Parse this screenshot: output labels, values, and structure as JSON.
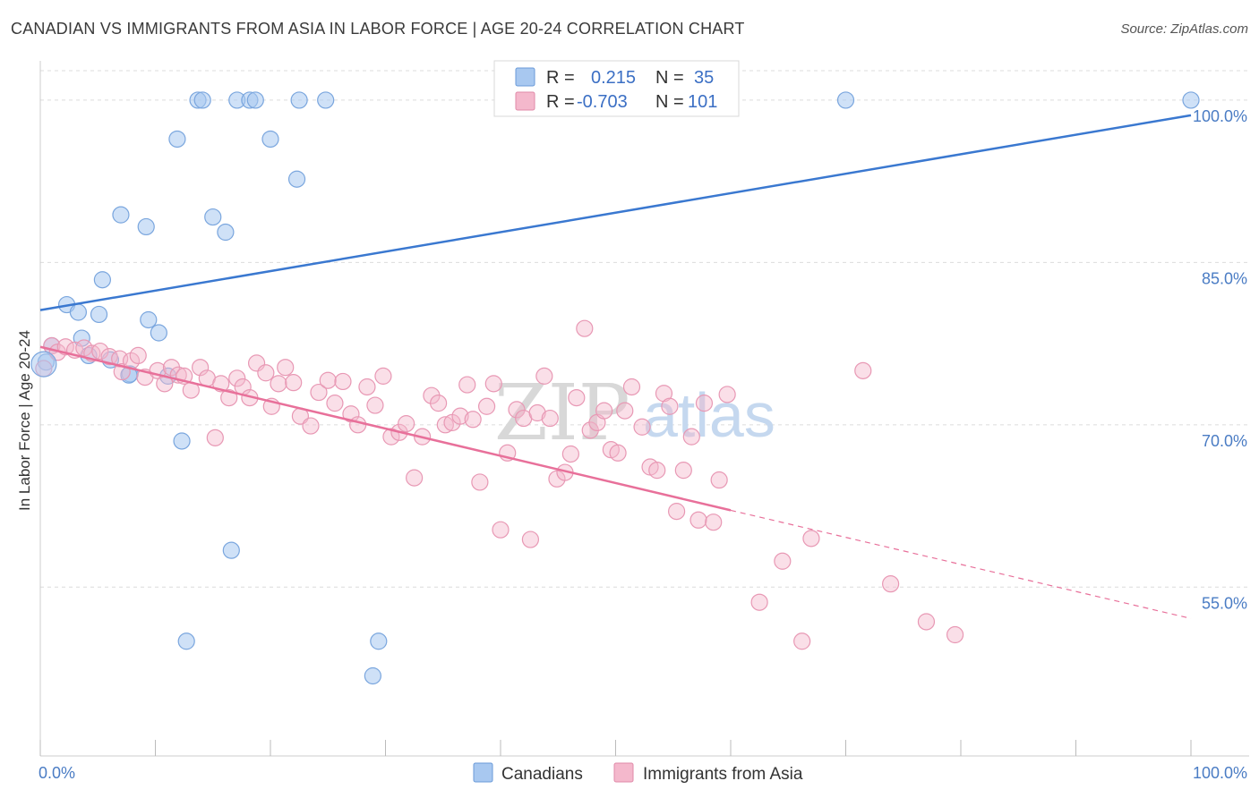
{
  "header": {
    "title": "CANADIAN VS IMMIGRANTS FROM ASIA IN LABOR FORCE | AGE 20-24 CORRELATION CHART",
    "source": "Source: ZipAtlas.com"
  },
  "watermark": {
    "zip": "ZIP",
    "atlas": "atlas"
  },
  "legend": {
    "r_label": "R =",
    "n_label": "N =",
    "rows": [
      {
        "r": "0.215",
        "n": "35",
        "color": "#a8c8f0"
      },
      {
        "r": "-0.703",
        "n": "101",
        "color": "#f4b8cc"
      }
    ]
  },
  "bottom_legend": [
    "Canadians",
    "Immigrants from Asia"
  ],
  "chart_data": {
    "type": "scatter",
    "title": "CANADIAN VS IMMIGRANTS FROM ASIA IN LABOR FORCE | AGE 20-24 CORRELATION CHART",
    "xlabel": "",
    "ylabel": "In Labor Force | Age 20-24",
    "xlim": [
      0,
      100
    ],
    "ylim": [
      39.4,
      103.3
    ],
    "x_tick_labels": [
      "0.0%",
      "100.0%"
    ],
    "y_ticks": [
      55,
      70,
      85,
      100
    ],
    "y_tick_labels": [
      "55.0%",
      "70.0%",
      "85.0%",
      "100.0%"
    ],
    "grid": true,
    "colors": {
      "canadians": "#3a78d0",
      "asia": "#e8709a",
      "canadians_fill": "#a8c8f0",
      "asia_fill": "#f4b8cc"
    },
    "series": [
      {
        "name": "Canadians",
        "points": [
          [
            0.5,
            75.8
          ],
          [
            1.0,
            77.3
          ],
          [
            2.3,
            81.1
          ],
          [
            3.3,
            80.4
          ],
          [
            3.6,
            78.0
          ],
          [
            4.2,
            76.4
          ],
          [
            5.4,
            83.4
          ],
          [
            5.1,
            80.2
          ],
          [
            6.1,
            76.0
          ],
          [
            7.0,
            89.4
          ],
          [
            7.8,
            74.7
          ],
          [
            7.7,
            74.6
          ],
          [
            9.4,
            79.7
          ],
          [
            9.2,
            88.3
          ],
          [
            10.3,
            78.5
          ],
          [
            11.1,
            74.5
          ],
          [
            11.9,
            96.4
          ],
          [
            12.3,
            68.5
          ],
          [
            12.7,
            50.0
          ],
          [
            13.7,
            100.0
          ],
          [
            14.1,
            100.0
          ],
          [
            15.0,
            89.2
          ],
          [
            16.1,
            87.8
          ],
          [
            16.6,
            58.4
          ],
          [
            17.1,
            100.0
          ],
          [
            18.2,
            100.0
          ],
          [
            18.7,
            100.0
          ],
          [
            20.0,
            96.4
          ],
          [
            22.3,
            92.7
          ],
          [
            22.5,
            100.0
          ],
          [
            24.8,
            100.0
          ],
          [
            29.4,
            50.0
          ],
          [
            28.9,
            46.8
          ],
          [
            70.0,
            100.0
          ],
          [
            100.0,
            100.0
          ]
        ],
        "trend": {
          "x": [
            0,
            100
          ],
          "y": [
            80.6,
            98.6
          ]
        }
      },
      {
        "name": "Immigrants from Asia",
        "points": [
          [
            0.3,
            75.2
          ],
          [
            1.0,
            77.3
          ],
          [
            1.5,
            76.7
          ],
          [
            2.2,
            77.2
          ],
          [
            3.0,
            76.9
          ],
          [
            3.8,
            77.1
          ],
          [
            4.5,
            76.6
          ],
          [
            5.2,
            76.8
          ],
          [
            6.0,
            76.3
          ],
          [
            6.9,
            76.1
          ],
          [
            7.1,
            74.9
          ],
          [
            7.9,
            75.9
          ],
          [
            8.5,
            76.4
          ],
          [
            9.1,
            74.4
          ],
          [
            10.2,
            75.0
          ],
          [
            10.8,
            73.8
          ],
          [
            11.4,
            75.3
          ],
          [
            12.0,
            74.6
          ],
          [
            12.5,
            74.5
          ],
          [
            13.1,
            73.2
          ],
          [
            13.9,
            75.3
          ],
          [
            14.5,
            74.3
          ],
          [
            15.2,
            68.8
          ],
          [
            15.7,
            73.8
          ],
          [
            16.4,
            72.5
          ],
          [
            17.1,
            74.3
          ],
          [
            17.6,
            73.5
          ],
          [
            18.2,
            72.5
          ],
          [
            18.8,
            75.7
          ],
          [
            19.6,
            74.8
          ],
          [
            20.1,
            71.7
          ],
          [
            20.7,
            73.8
          ],
          [
            21.3,
            75.3
          ],
          [
            22.0,
            73.9
          ],
          [
            22.6,
            70.8
          ],
          [
            23.5,
            69.9
          ],
          [
            24.2,
            73.0
          ],
          [
            25.0,
            74.1
          ],
          [
            25.6,
            72.0
          ],
          [
            26.3,
            74.0
          ],
          [
            27.0,
            71.0
          ],
          [
            27.6,
            70.0
          ],
          [
            28.4,
            73.5
          ],
          [
            29.1,
            71.8
          ],
          [
            29.8,
            74.5
          ],
          [
            30.5,
            68.9
          ],
          [
            31.2,
            69.3
          ],
          [
            31.8,
            70.1
          ],
          [
            32.5,
            65.1
          ],
          [
            33.2,
            68.9
          ],
          [
            34.0,
            72.7
          ],
          [
            34.6,
            72.0
          ],
          [
            35.2,
            70.0
          ],
          [
            35.8,
            70.2
          ],
          [
            36.5,
            70.8
          ],
          [
            37.1,
            73.7
          ],
          [
            37.6,
            70.5
          ],
          [
            38.2,
            64.7
          ],
          [
            38.8,
            71.7
          ],
          [
            39.4,
            73.8
          ],
          [
            40.0,
            60.3
          ],
          [
            40.6,
            67.4
          ],
          [
            41.4,
            71.4
          ],
          [
            42.0,
            70.6
          ],
          [
            42.6,
            59.4
          ],
          [
            43.2,
            71.1
          ],
          [
            43.8,
            74.5
          ],
          [
            44.3,
            70.6
          ],
          [
            44.9,
            65.0
          ],
          [
            45.6,
            65.6
          ],
          [
            46.1,
            67.3
          ],
          [
            46.6,
            72.5
          ],
          [
            47.3,
            78.9
          ],
          [
            47.8,
            69.5
          ],
          [
            48.4,
            70.2
          ],
          [
            49.0,
            71.3
          ],
          [
            49.6,
            67.7
          ],
          [
            50.2,
            67.4
          ],
          [
            50.8,
            71.3
          ],
          [
            51.4,
            73.5
          ],
          [
            52.3,
            69.8
          ],
          [
            53.0,
            66.1
          ],
          [
            53.6,
            65.8
          ],
          [
            54.2,
            72.9
          ],
          [
            54.7,
            71.7
          ],
          [
            55.3,
            62.0
          ],
          [
            55.9,
            65.8
          ],
          [
            56.6,
            68.9
          ],
          [
            57.2,
            61.2
          ],
          [
            57.7,
            72.0
          ],
          [
            58.5,
            61.0
          ],
          [
            59.0,
            64.9
          ],
          [
            59.7,
            72.8
          ],
          [
            62.5,
            53.6
          ],
          [
            64.5,
            57.4
          ],
          [
            66.2,
            50.0
          ],
          [
            67.0,
            59.5
          ],
          [
            71.5,
            75.0
          ],
          [
            73.9,
            55.3
          ],
          [
            77.0,
            51.8
          ],
          [
            79.5,
            50.6
          ]
        ],
        "trend": {
          "x": [
            0,
            60
          ],
          "y": [
            77.2,
            62.1
          ]
        },
        "trend_dashed": {
          "x": [
            60,
            100
          ],
          "y": [
            62.1,
            52.1
          ]
        }
      }
    ]
  }
}
